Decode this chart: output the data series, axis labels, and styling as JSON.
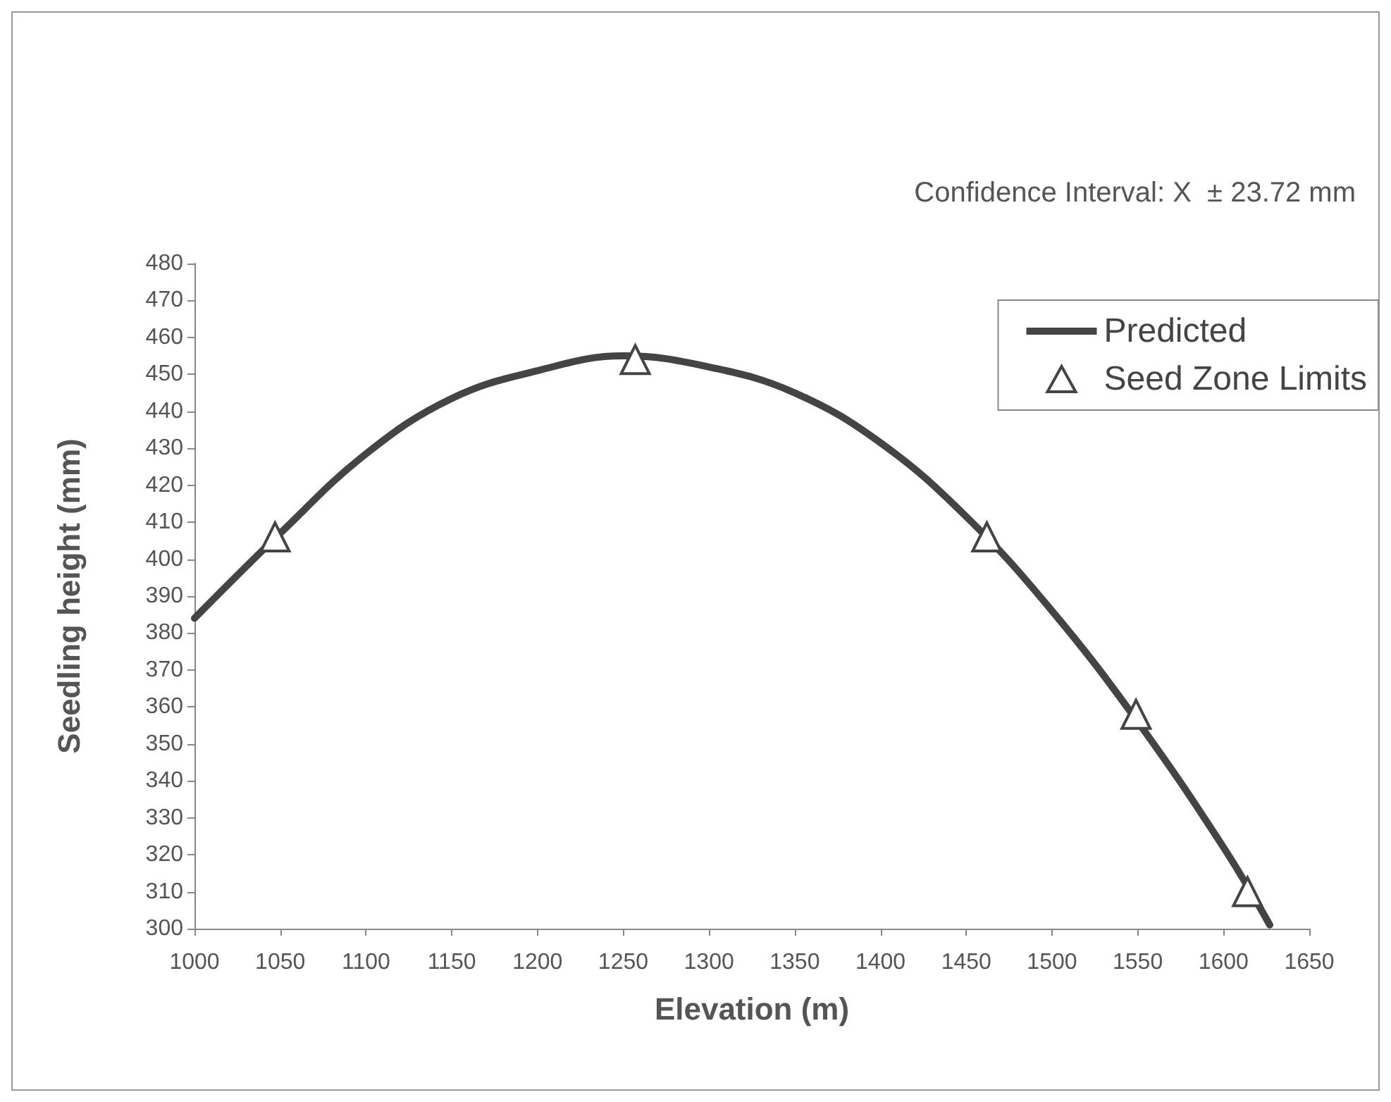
{
  "chart_data": {
    "type": "line",
    "xlabel": "Elevation (m)",
    "ylabel": "Seedling height (mm)",
    "annotations": [
      "Confidence Interval: X  ± 23.72 mm"
    ],
    "series": [
      {
        "name": "Predicted",
        "type": "line",
        "color": "#444444",
        "marker": "none",
        "line_style": "solid",
        "x": [
          1000,
          1050,
          1100,
          1150,
          1200,
          1250,
          1300,
          1350,
          1400,
          1450,
          1500,
          1550,
          1600,
          1627
        ],
        "values": [
          384,
          407,
          428.5,
          443.5,
          451,
          455,
          452,
          445,
          431.5,
          411.5,
          386,
          356,
          322,
          301
        ]
      },
      {
        "name": "Seed Zone Limits",
        "type": "scatter",
        "color": "#444444",
        "marker": "triangle",
        "x": [
          1047,
          1257,
          1462,
          1549,
          1614
        ],
        "values": [
          406,
          454,
          406,
          358,
          310
        ]
      }
    ],
    "xlim": [
      1000,
      1650
    ],
    "xticks": [
      1000,
      1050,
      1100,
      1150,
      1200,
      1250,
      1300,
      1350,
      1400,
      1450,
      1500,
      1550,
      1600,
      1650
    ],
    "ylim": [
      300,
      480
    ],
    "yticks": [
      300,
      310,
      320,
      330,
      340,
      350,
      360,
      370,
      380,
      390,
      400,
      410,
      420,
      430,
      440,
      450,
      460,
      470,
      480
    ],
    "grid": false,
    "legend": "top right"
  }
}
